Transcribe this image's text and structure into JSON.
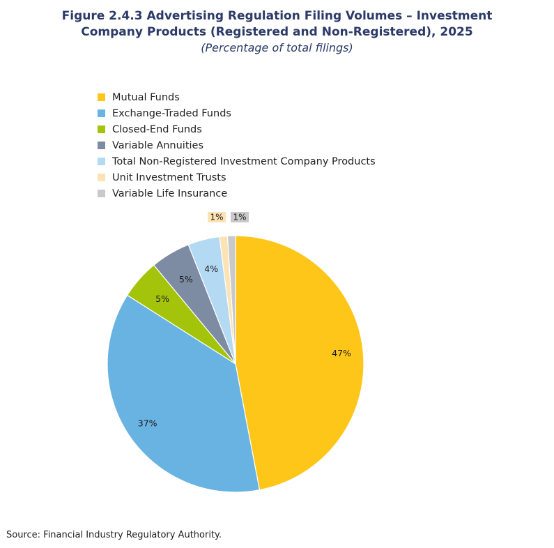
{
  "header": {
    "title": "Figure 2.4.3 Advertising Regulation Filing Volumes – Investment Company Products (Registered and Non-Registered), 2025",
    "subtitle": "(Percentage of total filings)"
  },
  "source": "Source: Financial Industry Regulatory Authority.",
  "chart_data": {
    "type": "pie",
    "title": "Figure 2.4.3 Advertising Regulation Filing Volumes – Investment Company Products (Registered and Non-Registered), 2025",
    "subtitle": "(Percentage of total filings)",
    "legend_position": "top-left",
    "slices": [
      {
        "name": "Mutual Funds",
        "value": 47,
        "label": "47%",
        "color": "#FFC61A"
      },
      {
        "name": "Exchange-Traded Funds",
        "value": 37,
        "label": "37%",
        "color": "#69B3E3"
      },
      {
        "name": "Closed-End Funds",
        "value": 5,
        "label": "5%",
        "color": "#A3C40A"
      },
      {
        "name": "Variable Annuities",
        "value": 5,
        "label": "5%",
        "color": "#7D8CA3"
      },
      {
        "name": "Total Non-Registered Investment Company Products",
        "value": 4,
        "label": "4%",
        "color": "#B4DAF3"
      },
      {
        "name": "Unit Investment Trusts",
        "value": 1,
        "label": "1%",
        "color": "#FCE3B4"
      },
      {
        "name": "Variable Life Insurance",
        "value": 1,
        "label": "1%",
        "color": "#C9C9C9"
      }
    ]
  }
}
